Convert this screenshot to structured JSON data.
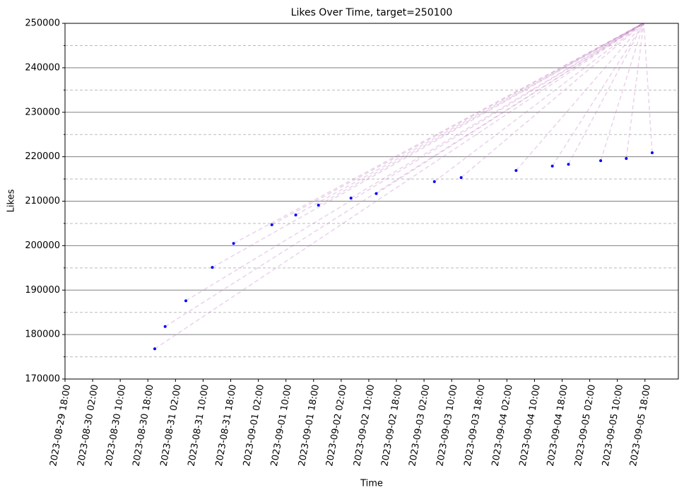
{
  "chart_data": {
    "type": "scatter",
    "title": "Likes Over Time, target=250100",
    "x_label": "Time",
    "y_label": "Likes",
    "x": [
      "2023-08-30 20:00",
      "2023-08-30 23:00",
      "2023-08-31 05:00",
      "2023-08-31 12:40",
      "2023-08-31 18:50",
      "2023-09-01 05:55",
      "2023-09-01 12:50",
      "2023-09-01 19:25",
      "2023-09-02 04:50",
      "2023-09-02 12:10",
      "2023-09-03 05:00",
      "2023-09-03 12:45",
      "2023-09-04 04:40",
      "2023-09-04 15:10",
      "2023-09-04 19:50",
      "2023-09-05 05:10",
      "2023-09-05 12:35",
      "2023-09-05 20:05"
    ],
    "values": [
      176800,
      181800,
      187600,
      195100,
      200500,
      204700,
      206900,
      209100,
      210700,
      211700,
      214400,
      215300,
      216900,
      217900,
      218300,
      219100,
      219600,
      220900
    ],
    "color": "#0000ff",
    "line_color": "#c080c0",
    "target": {
      "x": "2023-09-05 17:40",
      "y": 250100
    },
    "xlim": [
      "2023-08-29 18:00",
      "2023-09-06 03:40"
    ],
    "xticks": [
      "2023-08-29 18:00",
      "2023-08-30 02:00",
      "2023-08-30 10:00",
      "2023-08-30 18:00",
      "2023-08-31 02:00",
      "2023-08-31 10:00",
      "2023-08-31 18:00",
      "2023-09-01 02:00",
      "2023-09-01 10:00",
      "2023-09-01 18:00",
      "2023-09-02 02:00",
      "2023-09-02 10:00",
      "2023-09-02 18:00",
      "2023-09-03 02:00",
      "2023-09-03 10:00",
      "2023-09-03 18:00",
      "2023-09-04 02:00",
      "2023-09-04 10:00",
      "2023-09-04 18:00",
      "2023-09-05 02:00",
      "2023-09-05 10:00",
      "2023-09-05 18:00"
    ],
    "ylim": [
      170000,
      250000
    ],
    "yticks": [
      170000,
      180000,
      190000,
      200000,
      210000,
      220000,
      230000,
      240000,
      250000
    ],
    "yminorticks": [
      175000,
      185000,
      195000,
      205000,
      215000,
      225000,
      235000,
      245000
    ],
    "grid": true
  }
}
